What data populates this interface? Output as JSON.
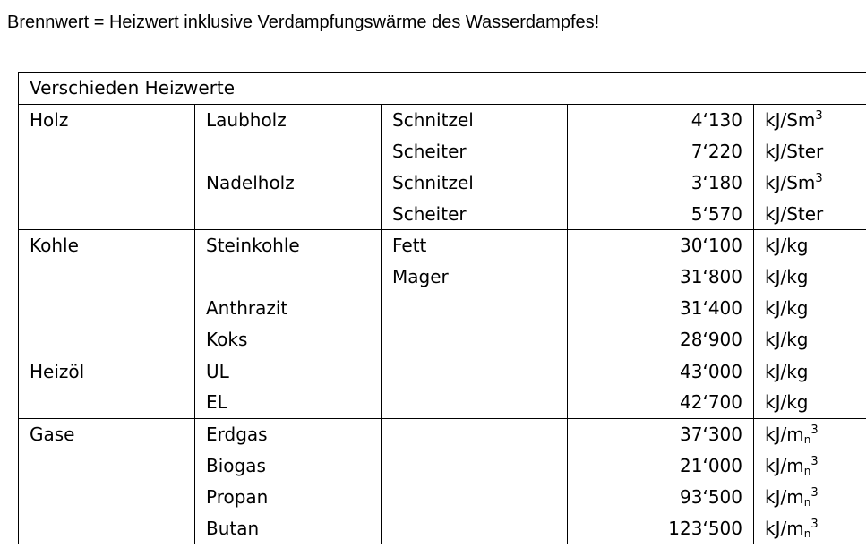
{
  "heading": "Brennwert = Heizwert inklusive Verdampfungswärme des Wasserdampfes!",
  "table": {
    "title": "Verschieden Heizwerte",
    "rows": [
      {
        "group": "Holz",
        "sub": "Laubholz",
        "kind": "Schnitzel",
        "value": "4‘130",
        "unit": {
          "base": "kJ/Sm",
          "sub": "",
          "sup": "3"
        }
      },
      {
        "group": "",
        "sub": "",
        "kind": "Scheiter",
        "value": "7‘220",
        "unit": {
          "base": "kJ/Ster",
          "sub": "",
          "sup": ""
        }
      },
      {
        "group": "",
        "sub": "Nadelholz",
        "kind": "Schnitzel",
        "value": "3‘180",
        "unit": {
          "base": "kJ/Sm",
          "sub": "",
          "sup": "3"
        }
      },
      {
        "group": "",
        "sub": "",
        "kind": "Scheiter",
        "value": "5‘570",
        "unit": {
          "base": "kJ/Ster",
          "sub": "",
          "sup": ""
        }
      },
      {
        "group": "Kohle",
        "sub": "Steinkohle",
        "kind": "Fett",
        "value": "30‘100",
        "unit": {
          "base": "kJ/kg",
          "sub": "",
          "sup": ""
        }
      },
      {
        "group": "",
        "sub": "",
        "kind": "Mager",
        "value": "31‘800",
        "unit": {
          "base": "kJ/kg",
          "sub": "",
          "sup": ""
        }
      },
      {
        "group": "",
        "sub": "Anthrazit",
        "kind": "",
        "value": "31‘400",
        "unit": {
          "base": "kJ/kg",
          "sub": "",
          "sup": ""
        }
      },
      {
        "group": "",
        "sub": "Koks",
        "kind": "",
        "value": "28‘900",
        "unit": {
          "base": "kJ/kg",
          "sub": "",
          "sup": ""
        }
      },
      {
        "group": "Heizöl",
        "sub": "UL",
        "kind": "",
        "value": "43‘000",
        "unit": {
          "base": "kJ/kg",
          "sub": "",
          "sup": ""
        }
      },
      {
        "group": "",
        "sub": "EL",
        "kind": "",
        "value": "42‘700",
        "unit": {
          "base": "kJ/kg",
          "sub": "",
          "sup": ""
        }
      },
      {
        "group": "Gase",
        "sub": "Erdgas",
        "kind": "",
        "value": "37‘300",
        "unit": {
          "base": "kJ/m",
          "sub": "n",
          "sup": "3"
        }
      },
      {
        "group": "",
        "sub": "Biogas",
        "kind": "",
        "value": "21‘000",
        "unit": {
          "base": "kJ/m",
          "sub": "n",
          "sup": "3"
        }
      },
      {
        "group": "",
        "sub": "Propan",
        "kind": "",
        "value": "93‘500",
        "unit": {
          "base": "kJ/m",
          "sub": "n",
          "sup": "3"
        }
      },
      {
        "group": "",
        "sub": "Butan",
        "kind": "",
        "value": "123‘500",
        "unit": {
          "base": "kJ/m",
          "sub": "n",
          "sup": "3"
        }
      }
    ]
  }
}
